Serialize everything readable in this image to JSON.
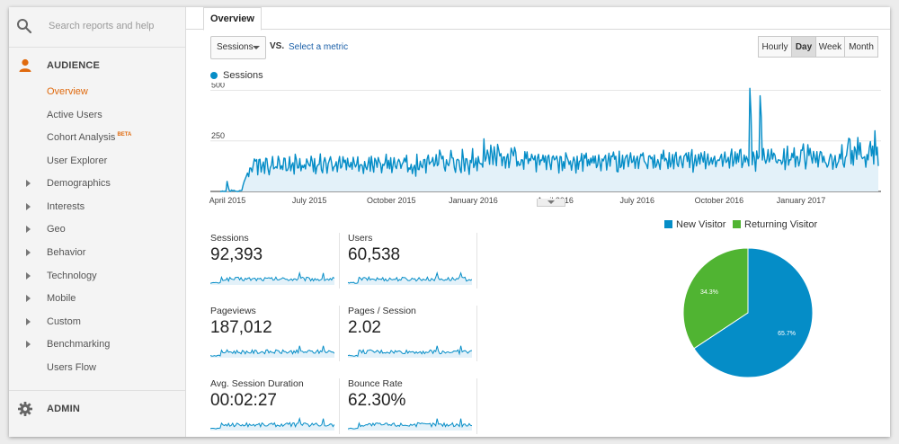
{
  "search": {
    "placeholder": "Search reports and help"
  },
  "sidebar": {
    "audience_label": "AUDIENCE",
    "items": [
      {
        "label": "Overview",
        "active": true
      },
      {
        "label": "Active Users"
      },
      {
        "label": "Cohort Analysis",
        "badge": "BETA"
      },
      {
        "label": "User Explorer"
      },
      {
        "label": "Demographics",
        "expandable": true
      },
      {
        "label": "Interests",
        "expandable": true
      },
      {
        "label": "Geo",
        "expandable": true
      },
      {
        "label": "Behavior",
        "expandable": true
      },
      {
        "label": "Technology",
        "expandable": true
      },
      {
        "label": "Mobile",
        "expandable": true
      },
      {
        "label": "Custom",
        "expandable": true
      },
      {
        "label": "Benchmarking",
        "expandable": true
      },
      {
        "label": "Users Flow"
      }
    ],
    "admin_label": "ADMIN"
  },
  "tabs": {
    "overview": "Overview"
  },
  "toolbar": {
    "metric": "Sessions",
    "vs": "VS.",
    "select_metric": "Select a metric",
    "granularity": [
      "Hourly",
      "Day",
      "Week",
      "Month"
    ],
    "selected_granularity": "Day"
  },
  "colors": {
    "accent": "#058dc7",
    "returning": "#50b432",
    "active_nav": "#e06a0e"
  },
  "chart_data": [
    {
      "type": "area",
      "series": [
        {
          "name": "Sessions",
          "values": [
            0,
            0,
            2,
            0,
            1,
            0,
            50,
            24,
            4,
            0,
            7,
            2,
            6,
            2,
            1,
            0,
            0,
            4,
            4,
            5,
            30,
            48,
            62,
            77,
            91,
            73,
            116,
            115,
            97,
            131,
            161,
            150,
            158,
            82,
            157,
            159,
            96,
            127,
            146,
            89,
            164,
            162,
            112,
            82,
            117,
            130,
            173,
            112,
            117,
            122,
            115,
            174,
            153,
            111,
            127,
            108,
            165,
            163,
            103,
            104,
            119,
            172,
            102,
            130,
            142,
            86,
            184,
            157,
            116,
            117,
            162,
            102,
            129,
            118,
            132,
            111,
            161,
            146,
            131,
            125,
            174,
            148,
            98,
            162,
            87,
            121,
            132,
            133,
            186,
            107,
            92,
            144,
            167,
            141,
            90,
            137,
            155,
            172,
            141,
            102,
            121,
            127,
            147,
            97,
            146,
            173,
            115,
            123,
            172,
            143,
            155,
            107,
            164,
            127,
            120,
            144,
            110,
            169,
            139,
            121,
            133,
            171,
            100,
            130,
            133,
            127,
            89,
            148,
            121,
            108,
            139,
            168,
            100,
            174,
            129,
            95,
            164,
            151,
            119,
            168,
            148,
            137,
            92,
            134,
            129,
            143,
            184,
            115,
            154,
            112,
            167,
            93,
            131,
            167,
            124,
            113,
            144,
            159,
            146,
            114,
            135,
            144,
            165,
            146,
            179,
            97,
            117,
            109,
            134,
            88,
            117,
            130,
            75,
            184,
            109,
            108,
            150,
            124,
            117,
            157,
            158,
            91,
            161,
            180,
            134,
            144,
            148,
            168,
            125,
            136,
            182,
            127,
            135,
            205,
            183,
            161,
            174,
            120,
            101,
            157,
            136,
            127,
            156,
            203,
            166,
            165,
            117,
            94,
            155,
            159,
            153,
            109,
            93,
            208,
            162,
            101,
            162,
            161,
            129,
            84,
            154,
            142,
            212,
            118,
            133,
            165,
            102,
            173,
            142,
            136,
            137,
            120,
            260,
            150,
            165,
            205,
            178,
            134,
            229,
            187,
            133,
            221,
            174,
            127,
            233,
            207,
            175,
            187,
            127,
            170,
            171,
            115,
            167,
            186,
            117,
            153,
            214,
            195,
            176,
            218,
            194,
            125,
            149,
            129,
            131,
            157,
            155,
            110,
            197,
            161,
            196,
            138,
            162,
            152,
            184,
            164,
            156,
            177,
            97,
            164,
            184,
            131,
            156,
            153,
            180,
            145,
            176,
            108,
            169,
            180,
            140,
            108,
            168,
            176,
            156,
            162,
            175,
            147,
            91,
            173,
            171,
            103,
            148,
            114,
            191,
            171,
            155,
            133,
            151,
            105,
            140,
            170,
            150,
            91,
            174,
            110,
            150,
            151,
            188,
            100,
            181,
            164,
            190,
            126,
            158,
            130,
            165,
            141,
            175,
            140,
            175,
            118,
            129,
            181,
            142,
            102,
            161,
            151,
            167,
            179,
            106,
            150,
            189,
            125,
            175,
            172,
            195,
            159,
            174,
            99,
            97,
            199,
            118,
            126,
            179,
            111,
            160,
            174,
            181,
            122,
            158,
            191,
            143,
            147,
            175,
            114,
            157,
            174,
            113,
            159,
            184,
            176,
            191,
            150,
            142,
            132,
            113,
            174,
            177,
            161,
            170,
            115,
            180,
            119,
            132,
            158,
            137,
            109,
            184,
            161,
            204,
            151,
            164,
            153,
            113,
            192,
            121,
            142,
            183,
            112,
            176,
            194,
            135,
            123,
            168,
            176,
            141,
            117,
            173,
            180,
            190,
            148,
            193,
            118,
            174,
            207,
            95,
            140,
            180,
            126,
            154,
            184,
            135,
            191,
            171,
            145,
            197,
            112,
            152,
            186,
            130,
            145,
            167,
            135,
            161,
            174,
            122,
            150,
            156,
            153,
            169,
            184,
            124,
            161,
            195,
            143,
            151,
            169,
            116,
            177,
            210,
            125,
            147,
            196,
            138,
            187,
            146,
            204,
            209,
            118,
            140,
            180,
            146,
            173,
            157,
            126,
            510,
            382,
            132,
            195,
            168,
            100,
            200,
            161,
            171,
            473,
            367,
            155,
            212,
            160,
            139,
            159,
            207,
            146,
            164,
            210,
            160,
            190,
            180,
            148,
            141,
            157,
            154,
            154,
            134,
            149,
            211,
            108,
            161,
            224,
            130,
            157,
            156,
            189,
            167,
            216,
            121,
            173,
            172,
            126,
            150,
            205,
            203,
            235,
            176,
            111,
            154,
            231,
            178,
            213,
            171,
            140,
            198,
            169,
            142,
            197,
            121,
            173,
            198,
            192,
            144,
            174,
            145,
            139,
            120,
            132,
            162,
            185,
            171,
            110,
            151,
            178,
            118,
            136,
            149,
            185,
            160,
            231,
            137,
            120,
            167,
            178,
            225,
            263,
            258,
            137,
            202,
            130,
            221,
            205,
            159,
            267,
            182,
            241,
            175,
            162,
            167,
            172,
            120,
            182,
            156,
            215,
            247,
            175,
            224,
            135,
            300,
            180,
            219,
            126
          ]
        }
      ],
      "x_tick_labels": [
        "April 2015",
        "July 2015",
        "October 2015",
        "January 2016",
        "April 2016",
        "July 2016",
        "October 2016",
        "January 2017"
      ],
      "y_tick_labels": [
        "500",
        "250"
      ],
      "ylim": [
        0,
        520
      ],
      "grid": true
    },
    {
      "type": "pie",
      "categories": [
        "New Visitor",
        "Returning Visitor"
      ],
      "values": [
        65.7,
        34.3
      ],
      "labels": [
        "65.7%",
        "34.3%"
      ],
      "colors": [
        "#058dc7",
        "#50b432"
      ],
      "legend_position": "top"
    }
  ],
  "stats": [
    {
      "label": "Sessions",
      "value": "92,393"
    },
    {
      "label": "Users",
      "value": "60,538"
    },
    {
      "label": "Pageviews",
      "value": "187,012"
    },
    {
      "label": "Pages / Session",
      "value": "2.02"
    },
    {
      "label": "Avg. Session Duration",
      "value": "00:02:27"
    },
    {
      "label": "Bounce Rate",
      "value": "62.30%"
    }
  ]
}
